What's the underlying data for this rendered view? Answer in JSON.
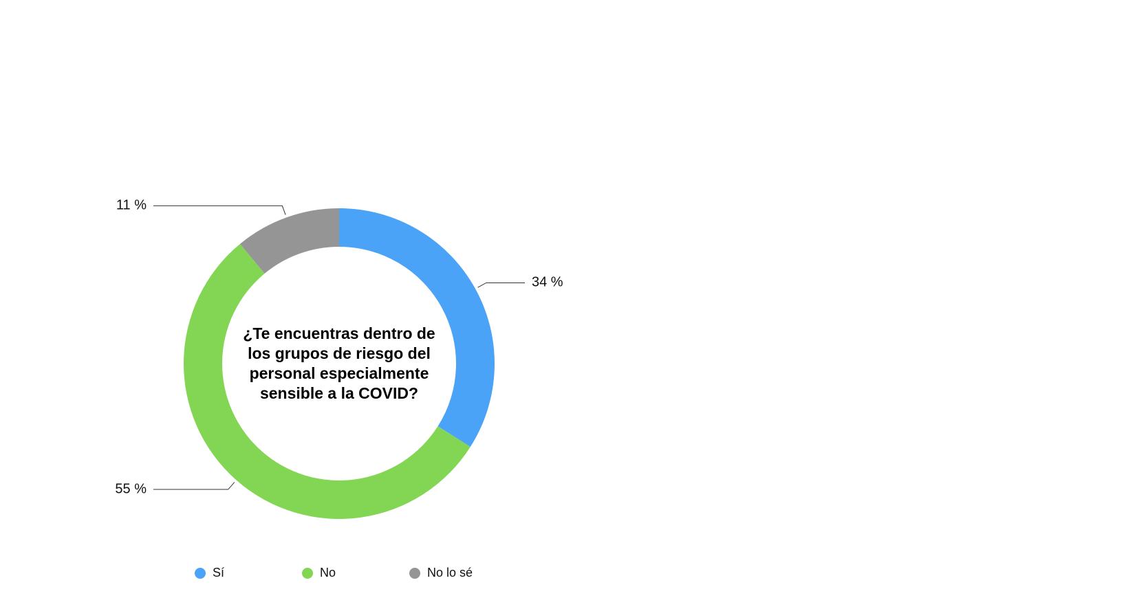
{
  "chart_data": {
    "type": "donut",
    "title": "¿Te encuentras dentro de los grupos de riesgo del personal especialmente sensible a la COVID?",
    "series": [
      {
        "name": "Sí",
        "color": "#4aa3f7",
        "value": 34,
        "value_label": "34 %"
      },
      {
        "name": "No",
        "color": "#83d654",
        "value": 55,
        "value_label": "55 %"
      },
      {
        "name": "No lo sé",
        "color": "#959595",
        "value": 11,
        "value_label": "11 %"
      }
    ]
  }
}
